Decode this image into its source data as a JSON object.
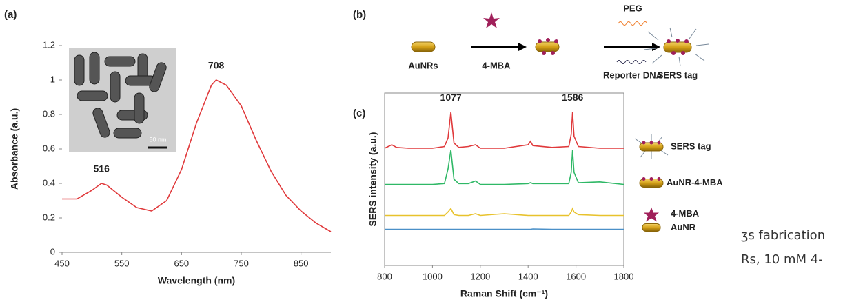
{
  "panel_labels": [
    "(a)",
    "(b)",
    "(c)"
  ],
  "chart_data": [
    {
      "type": "line",
      "x_label": "Wavelength (nm)",
      "y_label": "Absorbance (a.u.)",
      "x": [
        450,
        475,
        500,
        516,
        525,
        550,
        575,
        600,
        625,
        650,
        675,
        700,
        708,
        725,
        750,
        775,
        800,
        825,
        850,
        875,
        900
      ],
      "series": [
        {
          "color": "#e0393b",
          "values": [
            0.31,
            0.31,
            0.36,
            0.4,
            0.39,
            0.32,
            0.26,
            0.24,
            0.3,
            0.48,
            0.75,
            0.97,
            1,
            0.97,
            0.85,
            0.65,
            0.47,
            0.33,
            0.24,
            0.17,
            0.12
          ]
        }
      ],
      "xlim": [
        450,
        900
      ],
      "xticks": [
        450,
        550,
        650,
        750,
        850
      ],
      "ylim": [
        0,
        1.2
      ],
      "yticks": [
        0,
        0.2,
        0.4,
        0.6,
        0.8,
        1,
        1.2
      ],
      "peaks": [
        {
          "x": 516,
          "y": 0.4
        },
        {
          "x": 708,
          "y": 1
        }
      ],
      "inset_scale": "50 nm"
    },
    {
      "type": "line",
      "x_label": "Raman Shift (cm⁻¹)",
      "y_label": "SERS intensity (a.u.)",
      "x": [
        800,
        830,
        850,
        900,
        1000,
        1050,
        1065,
        1077,
        1090,
        1110,
        1150,
        1180,
        1200,
        1300,
        1400,
        1410,
        1420,
        1500,
        1570,
        1580,
        1586,
        1592,
        1610,
        1700,
        1800
      ],
      "series": [
        {
          "name": "SERS tag",
          "color": "#e0393b",
          "values": [
            6.8,
            7.0,
            6.85,
            6.8,
            6.8,
            6.9,
            7.4,
            8.9,
            7.1,
            6.85,
            6.9,
            7.0,
            6.8,
            6.8,
            7.0,
            7.2,
            6.95,
            6.85,
            6.9,
            7.6,
            8.9,
            7.5,
            6.9,
            6.8,
            6.8
          ]
        },
        {
          "name": "AuNR-4-MBA",
          "color": "#2fb866",
          "values": [
            4.7,
            4.7,
            4.7,
            4.7,
            4.7,
            4.75,
            5.6,
            6.7,
            5.0,
            4.75,
            4.75,
            4.9,
            4.7,
            4.7,
            4.75,
            4.8,
            4.75,
            4.75,
            4.75,
            5.4,
            6.7,
            5.4,
            4.8,
            4.85,
            4.7
          ]
        },
        {
          "name": "4-MBA",
          "color": "#e8c22c",
          "values": [
            2.9,
            2.9,
            2.9,
            2.9,
            2.9,
            2.9,
            3.1,
            3.3,
            2.95,
            2.9,
            2.9,
            3.0,
            2.9,
            3.0,
            2.9,
            2.9,
            2.9,
            2.9,
            2.9,
            3.1,
            3.3,
            3.1,
            2.95,
            2.9,
            2.9
          ]
        },
        {
          "name": "AuNR",
          "color": "#4a90c8",
          "values": [
            2.1,
            2.1,
            2.1,
            2.1,
            2.1,
            2.1,
            2.1,
            2.1,
            2.1,
            2.1,
            2.1,
            2.1,
            2.1,
            2.1,
            2.1,
            2.1,
            2.12,
            2.1,
            2.1,
            2.1,
            2.1,
            2.1,
            2.1,
            2.1,
            2.1
          ]
        }
      ],
      "xlim": [
        800,
        1800
      ],
      "xticks": [
        800,
        1000,
        1200,
        1400,
        1600,
        1800
      ],
      "ylim": [
        0,
        10
      ],
      "peaks": [
        {
          "x": 1077,
          "y": 8.9
        },
        {
          "x": 1586,
          "y": 8.9
        }
      ]
    }
  ],
  "scheme": {
    "start": "AuNRs",
    "step1": "4-MBA",
    "reagent_top": "PEG",
    "reagent_bottom": "Reporter DNA",
    "product": "SERS tag"
  },
  "caption_fragments": [
    "ʒs fabrication",
    "Rs, 10 mM 4-"
  ]
}
